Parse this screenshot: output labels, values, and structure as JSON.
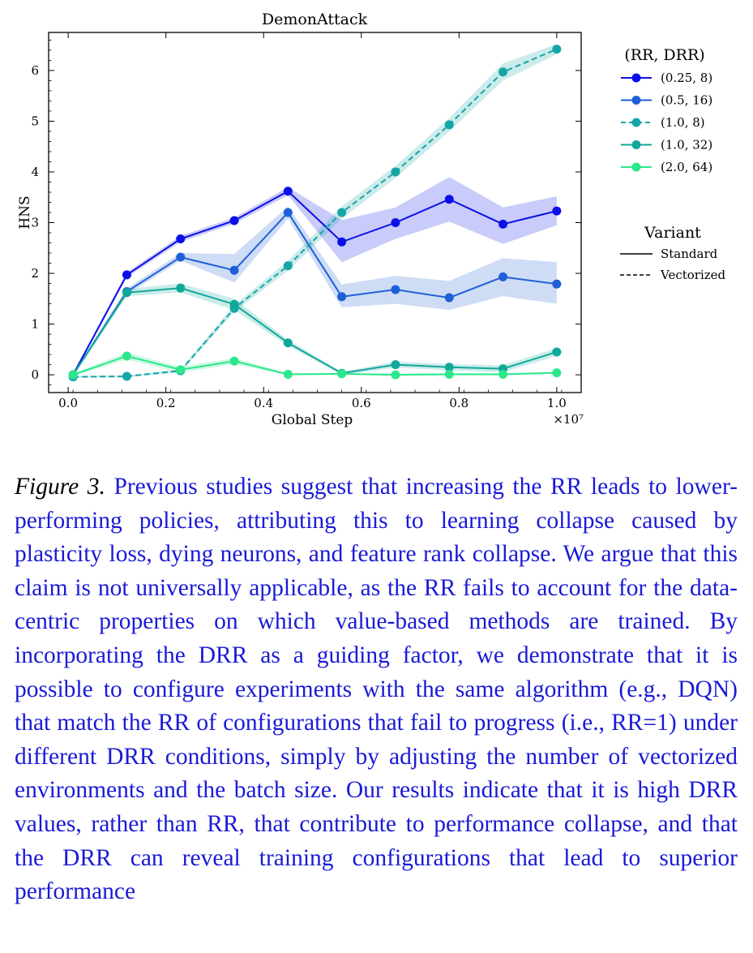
{
  "chart_data": {
    "type": "line",
    "title": "DemonAttack",
    "xlabel": "Global Step",
    "ylabel": "HNS",
    "x_multiplier": "×10⁷",
    "xlim": [
      -0.04,
      1.05
    ],
    "ylim": [
      -0.35,
      6.75
    ],
    "x_ticks": [
      0.0,
      0.2,
      0.4,
      0.6,
      0.8,
      1.0
    ],
    "x_tick_labels": [
      "0.0",
      "0.2",
      "0.4",
      "0.6",
      "0.8",
      "1.0"
    ],
    "y_ticks": [
      0,
      1,
      2,
      3,
      4,
      5,
      6
    ],
    "y_tick_labels": [
      "0",
      "1",
      "2",
      "3",
      "4",
      "5",
      "6"
    ],
    "grid": false,
    "legend": {
      "placement": "right-outside",
      "series_title": "(RR, DRR)",
      "variant_title": "Variant",
      "variants": [
        {
          "label": "Standard",
          "dash": "solid"
        },
        {
          "label": "Vectorized",
          "dash": "dashed"
        }
      ]
    },
    "x": [
      0.01,
      0.12,
      0.23,
      0.34,
      0.45,
      0.56,
      0.67,
      0.78,
      0.89,
      1.0
    ],
    "series": [
      {
        "name": "(0.25, 8)",
        "color": "#0b10e8",
        "dash": "solid",
        "values": [
          0.0,
          1.97,
          2.68,
          3.04,
          3.62,
          2.62,
          3.0,
          3.46,
          2.97,
          3.23
        ],
        "lower": [
          -0.03,
          1.92,
          2.62,
          2.98,
          3.54,
          2.22,
          2.68,
          3.02,
          2.58,
          2.95
        ],
        "upper": [
          0.03,
          2.02,
          2.74,
          3.1,
          3.7,
          3.05,
          3.3,
          3.9,
          3.3,
          3.52
        ]
      },
      {
        "name": "(0.5, 16)",
        "color": "#1f5fd8",
        "dash": "solid",
        "values": [
          0.0,
          1.64,
          2.32,
          2.06,
          3.2,
          1.54,
          1.68,
          1.52,
          1.93,
          1.79
        ],
        "lower": [
          -0.03,
          1.58,
          2.25,
          1.82,
          3.08,
          1.33,
          1.4,
          1.28,
          1.55,
          1.4
        ],
        "upper": [
          0.03,
          1.7,
          2.4,
          2.38,
          3.32,
          1.78,
          1.95,
          1.85,
          2.3,
          2.22
        ]
      },
      {
        "name": "(1.0, 8)",
        "color": "#16a6a6",
        "dash": "dashed",
        "values": [
          -0.04,
          -0.03,
          0.08,
          1.31,
          2.15,
          3.2,
          4.0,
          4.93,
          5.97,
          6.42
        ],
        "lower": [
          -0.06,
          -0.05,
          0.05,
          1.24,
          2.05,
          3.08,
          3.88,
          4.8,
          5.8,
          6.32
        ],
        "upper": [
          -0.02,
          -0.01,
          0.11,
          1.38,
          2.25,
          3.32,
          4.12,
          5.06,
          6.14,
          6.52
        ]
      },
      {
        "name": "(1.0, 32)",
        "color": "#10a89a",
        "dash": "solid",
        "values": [
          0.0,
          1.62,
          1.71,
          1.39,
          0.63,
          0.03,
          0.2,
          0.15,
          0.12,
          0.45
        ],
        "lower": [
          -0.03,
          1.55,
          1.62,
          1.28,
          0.57,
          0.0,
          0.14,
          0.09,
          0.05,
          0.37
        ],
        "upper": [
          0.03,
          1.69,
          1.8,
          1.5,
          0.69,
          0.06,
          0.26,
          0.21,
          0.19,
          0.53
        ]
      },
      {
        "name": "(2.0, 64)",
        "color": "#2be88a",
        "dash": "solid",
        "values": [
          0.0,
          0.37,
          0.1,
          0.27,
          0.01,
          0.02,
          0.0,
          0.01,
          0.01,
          0.04
        ],
        "lower": [
          -0.03,
          0.3,
          0.04,
          0.21,
          -0.01,
          0.0,
          -0.02,
          -0.01,
          -0.01,
          0.02
        ],
        "upper": [
          0.03,
          0.44,
          0.16,
          0.33,
          0.03,
          0.04,
          0.02,
          0.03,
          0.03,
          0.06
        ]
      }
    ]
  },
  "caption": {
    "label": "Figure 3.",
    "text": "Previous studies suggest that increasing the RR leads to lower-performing policies, attributing this to learning collapse caused by plasticity loss, dying neurons, and feature rank collapse. We argue that this claim is not universally applicable, as the RR fails to account for the data-centric properties on which value-based methods are trained. By incorporating the DRR as a guiding factor, we demonstrate that it is possible to configure experiments with the same algorithm (e.g., DQN) that match the RR of configurations that fail to progress (i.e., RR=1) under different DRR conditions, simply by adjusting the number of vectorized environments and the batch size. Our results indicate that it is high DRR values, rather than RR, that contribute to performance collapse, and that the DRR can reveal training configurations that lead to superior performance"
  }
}
